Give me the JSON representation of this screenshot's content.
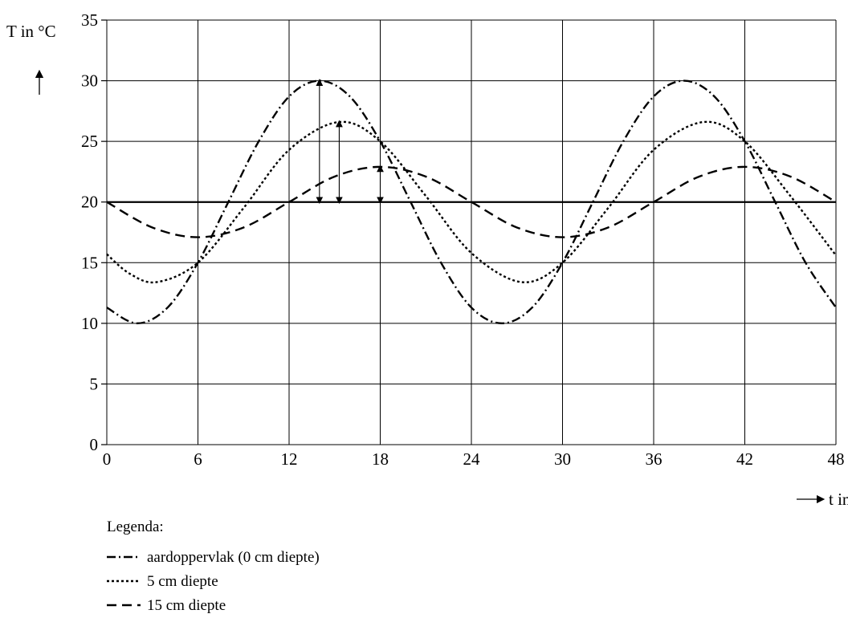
{
  "chart_data": {
    "type": "line",
    "xlabel": "t in uren",
    "ylabel": "T in °C",
    "xlim": [
      0,
      48
    ],
    "ylim": [
      0,
      35
    ],
    "xticks": [
      0,
      6,
      12,
      18,
      24,
      30,
      36,
      42,
      48
    ],
    "yticks": [
      0,
      5,
      10,
      15,
      20,
      25,
      30,
      35
    ],
    "grid": true,
    "reference_line": {
      "y": 20
    },
    "legend": {
      "title": "Legenda:",
      "placement": "below-left"
    },
    "series": [
      {
        "name": "aardoppervlak (0 cm diepte)",
        "style": "dash-dot",
        "points": [
          [
            0,
            11.3
          ],
          [
            2,
            10.0
          ],
          [
            4,
            11.3
          ],
          [
            6,
            15.0
          ],
          [
            8,
            20.0
          ],
          [
            10,
            25.0
          ],
          [
            12,
            28.7
          ],
          [
            14,
            30.0
          ],
          [
            16,
            28.7
          ],
          [
            18,
            25.0
          ],
          [
            20,
            20.0
          ],
          [
            22,
            15.0
          ],
          [
            24,
            11.3
          ],
          [
            26,
            10.0
          ],
          [
            28,
            11.3
          ],
          [
            30,
            15.0
          ],
          [
            32,
            20.0
          ],
          [
            34,
            25.0
          ],
          [
            36,
            28.7
          ],
          [
            38,
            30.0
          ],
          [
            40,
            28.7
          ],
          [
            42,
            25.0
          ],
          [
            44,
            20.0
          ],
          [
            46,
            15.0
          ],
          [
            48,
            11.3
          ]
        ]
      },
      {
        "name": "5 cm diepte",
        "style": "dotted",
        "points": [
          [
            0,
            15.7
          ],
          [
            1.5,
            14.1
          ],
          [
            3.3,
            13.4
          ],
          [
            6,
            15.0
          ],
          [
            9,
            19.5
          ],
          [
            12,
            24.3
          ],
          [
            15.3,
            26.6
          ],
          [
            18,
            25.0
          ],
          [
            21,
            20.5
          ],
          [
            24,
            15.8
          ],
          [
            27.3,
            13.4
          ],
          [
            30,
            15.0
          ],
          [
            33,
            19.5
          ],
          [
            36,
            24.3
          ],
          [
            39.3,
            26.6
          ],
          [
            42,
            25.0
          ],
          [
            45,
            20.5
          ],
          [
            48,
            15.6
          ]
        ]
      },
      {
        "name": "15 cm diepte",
        "style": "dashed",
        "points": [
          [
            0,
            20.0
          ],
          [
            3,
            17.9
          ],
          [
            6,
            17.1
          ],
          [
            9,
            17.9
          ],
          [
            12,
            20.0
          ],
          [
            15,
            22.1
          ],
          [
            18,
            22.9
          ],
          [
            21,
            22.1
          ],
          [
            24,
            20.0
          ],
          [
            27,
            17.9
          ],
          [
            30,
            17.1
          ],
          [
            33,
            17.9
          ],
          [
            36,
            20.0
          ],
          [
            39,
            22.1
          ],
          [
            42,
            22.9
          ],
          [
            45,
            22.1
          ],
          [
            48,
            20.0
          ]
        ]
      }
    ],
    "amplitude_arrows": [
      {
        "x": 14,
        "y_from": 20,
        "y_to": 30
      },
      {
        "x": 15.3,
        "y_from": 20,
        "y_to": 26.6
      },
      {
        "x": 18,
        "y_from": 20,
        "y_to": 22.9
      }
    ]
  }
}
